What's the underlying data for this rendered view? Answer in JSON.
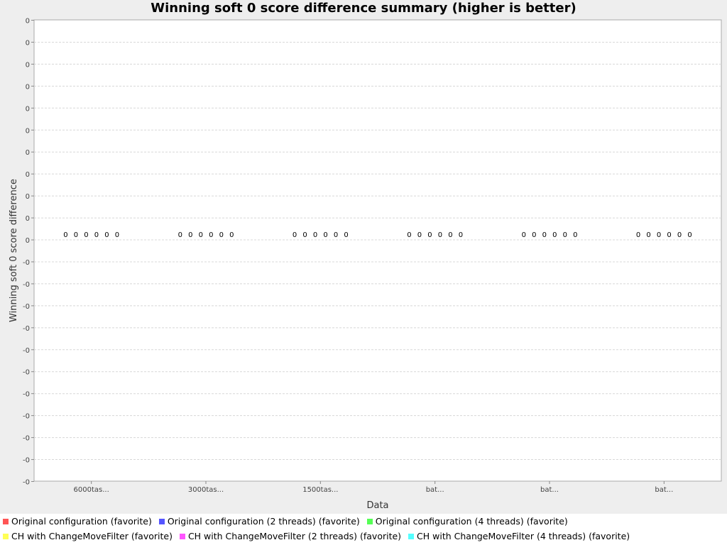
{
  "chart_data": {
    "type": "bar",
    "title": "Winning soft 0 score difference summary (higher is better)",
    "xlabel": "Data",
    "ylabel": "Winning soft 0 score difference",
    "categories": [
      "6000tas...",
      "3000tas...",
      "1500tas...",
      "bat...",
      "bat...",
      "bat..."
    ],
    "y_tick_labels": [
      "0",
      "0",
      "0",
      "0",
      "0",
      "0",
      "0",
      "0",
      "0",
      "0",
      "0",
      "-0",
      "-0",
      "-0",
      "-0",
      "-0",
      "-0",
      "-0",
      "-0",
      "-0",
      "-0",
      "-0"
    ],
    "grid": true,
    "legend_position": "bottom",
    "series": [
      {
        "name": "Original configuration (favorite)",
        "color": "#ff5555",
        "values": [
          0,
          0,
          0,
          0,
          0,
          0
        ],
        "labels": [
          "0",
          "0",
          "0",
          "0",
          "0",
          "0"
        ]
      },
      {
        "name": "Original configuration (2 threads) (favorite)",
        "color": "#5555ff",
        "values": [
          0,
          0,
          0,
          0,
          0,
          0
        ],
        "labels": [
          "0",
          "0",
          "0",
          "0",
          "0",
          "0"
        ]
      },
      {
        "name": "Original configuration (4 threads) (favorite)",
        "color": "#55ff55",
        "values": [
          0,
          0,
          0,
          0,
          0,
          0
        ],
        "labels": [
          "0",
          "0",
          "0",
          "0",
          "0",
          "0"
        ]
      },
      {
        "name": "CH with ChangeMoveFilter (favorite)",
        "color": "#ffff55",
        "values": [
          0,
          0,
          0,
          0,
          0,
          0
        ],
        "labels": [
          "0",
          "0",
          "0",
          "0",
          "0",
          "0"
        ]
      },
      {
        "name": "CH with ChangeMoveFilter (2 threads) (favorite)",
        "color": "#ff55ff",
        "values": [
          0,
          0,
          0,
          0,
          0,
          0
        ],
        "labels": [
          "0",
          "0",
          "0",
          "0",
          "0",
          "0"
        ]
      },
      {
        "name": "CH with ChangeMoveFilter (4 threads) (favorite)",
        "color": "#55ffff",
        "values": [
          0,
          0,
          0,
          0,
          0,
          0
        ],
        "labels": [
          "0",
          "0",
          "0",
          "0",
          "0",
          "0"
        ]
      }
    ]
  }
}
